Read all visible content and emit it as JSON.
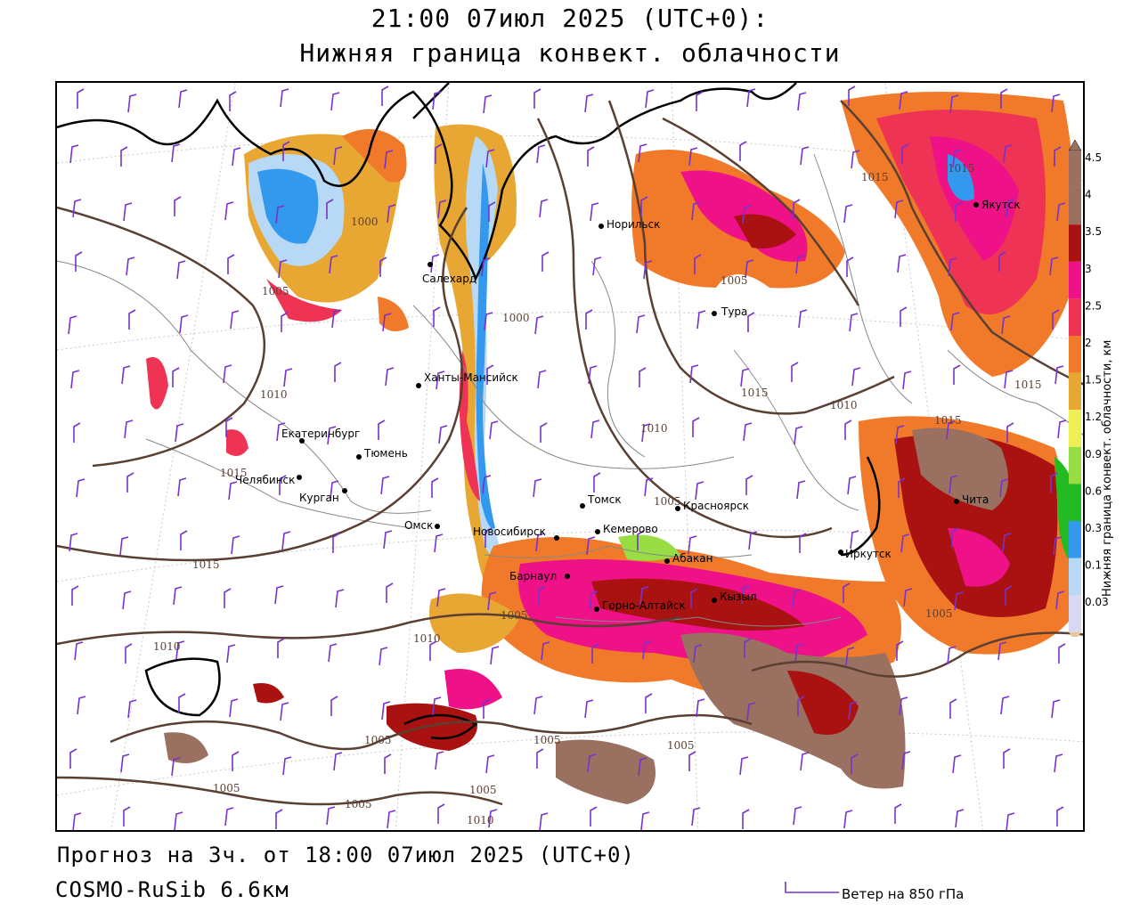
{
  "header": {
    "title_line1": "21:00 07июл 2025 (UTC+0):",
    "title_line2": "Нижняя граница конвект. облачности"
  },
  "footer": {
    "forecast": "Прогноз на 3ч. от 18:00 07июл 2025 (UTC+0)",
    "model": "COSMO-RuSib 6.6км",
    "wind_legend": "Ветер на 850 гПа"
  },
  "legend": {
    "title": "Нижняя граница конвект. облачности, км",
    "levels": [
      {
        "label": "0.03",
        "color": "#d8d8f5"
      },
      {
        "label": "0.1",
        "color": "#b7d9f5"
      },
      {
        "label": "0.3",
        "color": "#3399ee"
      },
      {
        "label": "0.6",
        "color": "#22bb22"
      },
      {
        "label": "0.9",
        "color": "#99dd44"
      },
      {
        "label": "1.2",
        "color": "#eeee55"
      },
      {
        "label": "1.5",
        "color": "#e8a733"
      },
      {
        "label": "2",
        "color": "#f07a2a"
      },
      {
        "label": "2.5",
        "color": "#ee3355"
      },
      {
        "label": "3",
        "color": "#ee1188"
      },
      {
        "label": "3.5",
        "color": "#aa1111"
      },
      {
        "label": "4",
        "color": "#9a7060"
      },
      {
        "label": "4.5",
        "color": "#9a7060"
      }
    ]
  },
  "colors": {
    "isobar": "#5a3f32",
    "wind_barb": "#7733cc",
    "coast": "#000000",
    "border": "#888888"
  },
  "cities": [
    {
      "name": "Салехард"
    },
    {
      "name": "Норильск"
    },
    {
      "name": "Тура"
    },
    {
      "name": "Якутск"
    },
    {
      "name": "Ханты-Мансийск"
    },
    {
      "name": "Екатеринбург"
    },
    {
      "name": "Тюмень"
    },
    {
      "name": "Челябинск"
    },
    {
      "name": "Курган"
    },
    {
      "name": "Омск"
    },
    {
      "name": "Новосибирск"
    },
    {
      "name": "Томск"
    },
    {
      "name": "Кемерово"
    },
    {
      "name": "Красноярск"
    },
    {
      "name": "Барнаул"
    },
    {
      "name": "Абакан"
    },
    {
      "name": "Горно-Алтайск"
    },
    {
      "name": "Кызыл"
    },
    {
      "name": "Иркутск"
    },
    {
      "name": "Чита"
    }
  ],
  "isobars": [
    "1000",
    "1005",
    "1010",
    "1015"
  ]
}
